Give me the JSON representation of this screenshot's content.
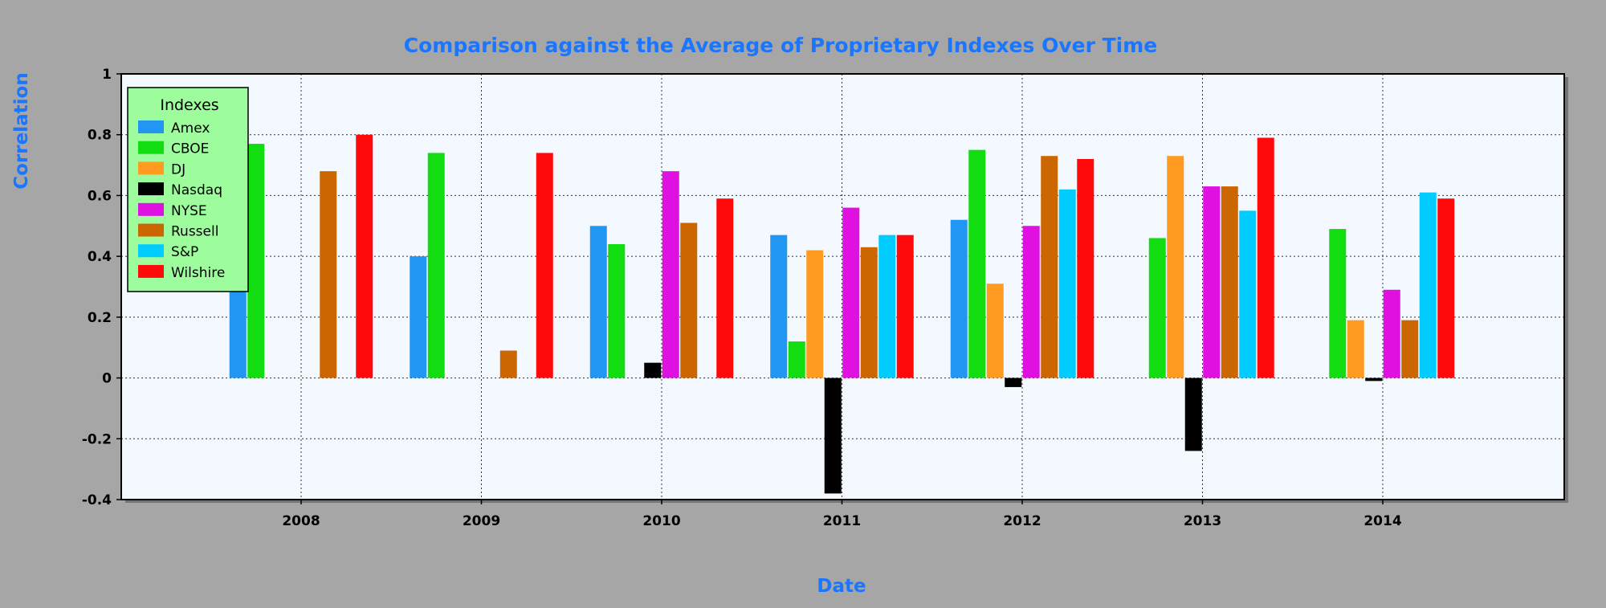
{
  "chart_data": {
    "type": "bar",
    "title": "Comparison against the Average of Proprietary Indexes Over Time",
    "xlabel": "Date",
    "ylabel": "Correlation",
    "categories": [
      "2008",
      "2009",
      "2010",
      "2011",
      "2012",
      "2013",
      "2014"
    ],
    "ylim": [
      -0.4,
      1
    ],
    "yticks": [
      "1",
      "0.8",
      "0.6",
      "0.4",
      "0.2",
      "0",
      "-0.2",
      "-0.4"
    ],
    "grid": true,
    "legend_title": "Indexes",
    "legend_position": "top-left",
    "background_color": "#a6a6a6",
    "plot_background_color": "#f4f9ff",
    "series": [
      {
        "name": "Amex",
        "color": "#2196f3",
        "values": [
          0.33,
          0.4,
          0.5,
          0.47,
          0.52,
          null,
          null
        ]
      },
      {
        "name": "CBOE",
        "color": "#11dd11",
        "values": [
          0.77,
          0.74,
          0.44,
          0.12,
          0.75,
          0.46,
          0.49
        ]
      },
      {
        "name": "DJ",
        "color": "#ff9b21",
        "values": [
          null,
          null,
          null,
          0.42,
          0.31,
          0.73,
          0.19
        ]
      },
      {
        "name": "Nasdaq",
        "color": "#000000",
        "values": [
          null,
          null,
          0.05,
          -0.38,
          -0.03,
          -0.24,
          -0.01
        ]
      },
      {
        "name": "NYSE",
        "color": "#e010e0",
        "values": [
          null,
          null,
          0.68,
          0.56,
          0.5,
          0.63,
          0.29
        ]
      },
      {
        "name": "Russell",
        "color": "#cc6600",
        "values": [
          0.68,
          0.09,
          0.51,
          0.43,
          0.73,
          0.63,
          0.19
        ]
      },
      {
        "name": "S&P",
        "color": "#00ccff",
        "values": [
          null,
          null,
          null,
          0.47,
          0.62,
          0.55,
          0.61
        ]
      },
      {
        "name": "Wilshire",
        "color": "#ff0a0a",
        "values": [
          0.8,
          0.74,
          0.59,
          0.47,
          0.72,
          0.79,
          0.59
        ]
      }
    ]
  }
}
